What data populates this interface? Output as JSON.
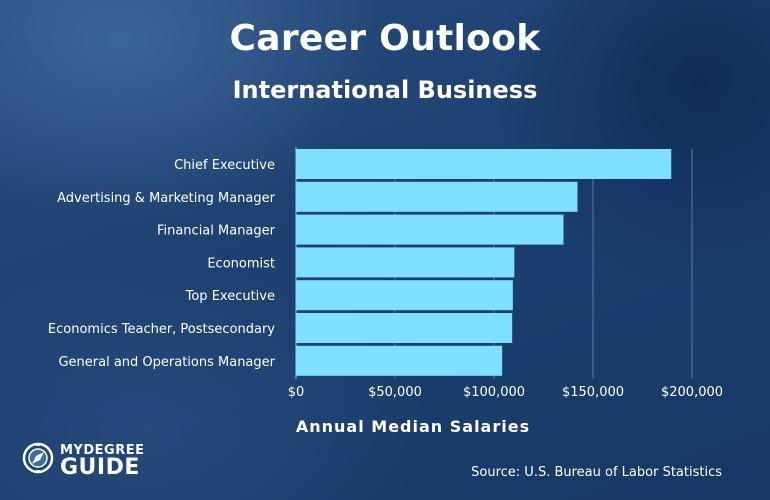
{
  "header": {
    "title": "Career Outlook",
    "subtitle": "International Business"
  },
  "footer": {
    "source": "Source: U.S. Bureau of Labor Statistics",
    "logo_top": "MYDEGREE",
    "logo_bottom": "GUIDE"
  },
  "colors": {
    "bar": "#7fdfff",
    "gridline": "#5a7aa0"
  },
  "chart_data": {
    "type": "bar",
    "orientation": "horizontal",
    "title": "Career Outlook",
    "subtitle": "International Business",
    "xlabel": "Annual Median Salaries",
    "ylabel": "",
    "categories": [
      "Chief Executive",
      "Advertising & Marketing Manager",
      "Financial Manager",
      "Economist",
      "Top Executive",
      "Economics Teacher, Postsecondary",
      "General and Operations Manager"
    ],
    "values": [
      189520,
      142170,
      135100,
      110280,
      109520,
      109180,
      104120
    ],
    "xlim": [
      0,
      200000
    ],
    "xticks": [
      0,
      50000,
      100000,
      150000,
      200000
    ],
    "xtick_labels": [
      "$0",
      "$50,000",
      "$100,000",
      "$150,000",
      "$200,000"
    ],
    "grid": true,
    "legend": "none"
  }
}
